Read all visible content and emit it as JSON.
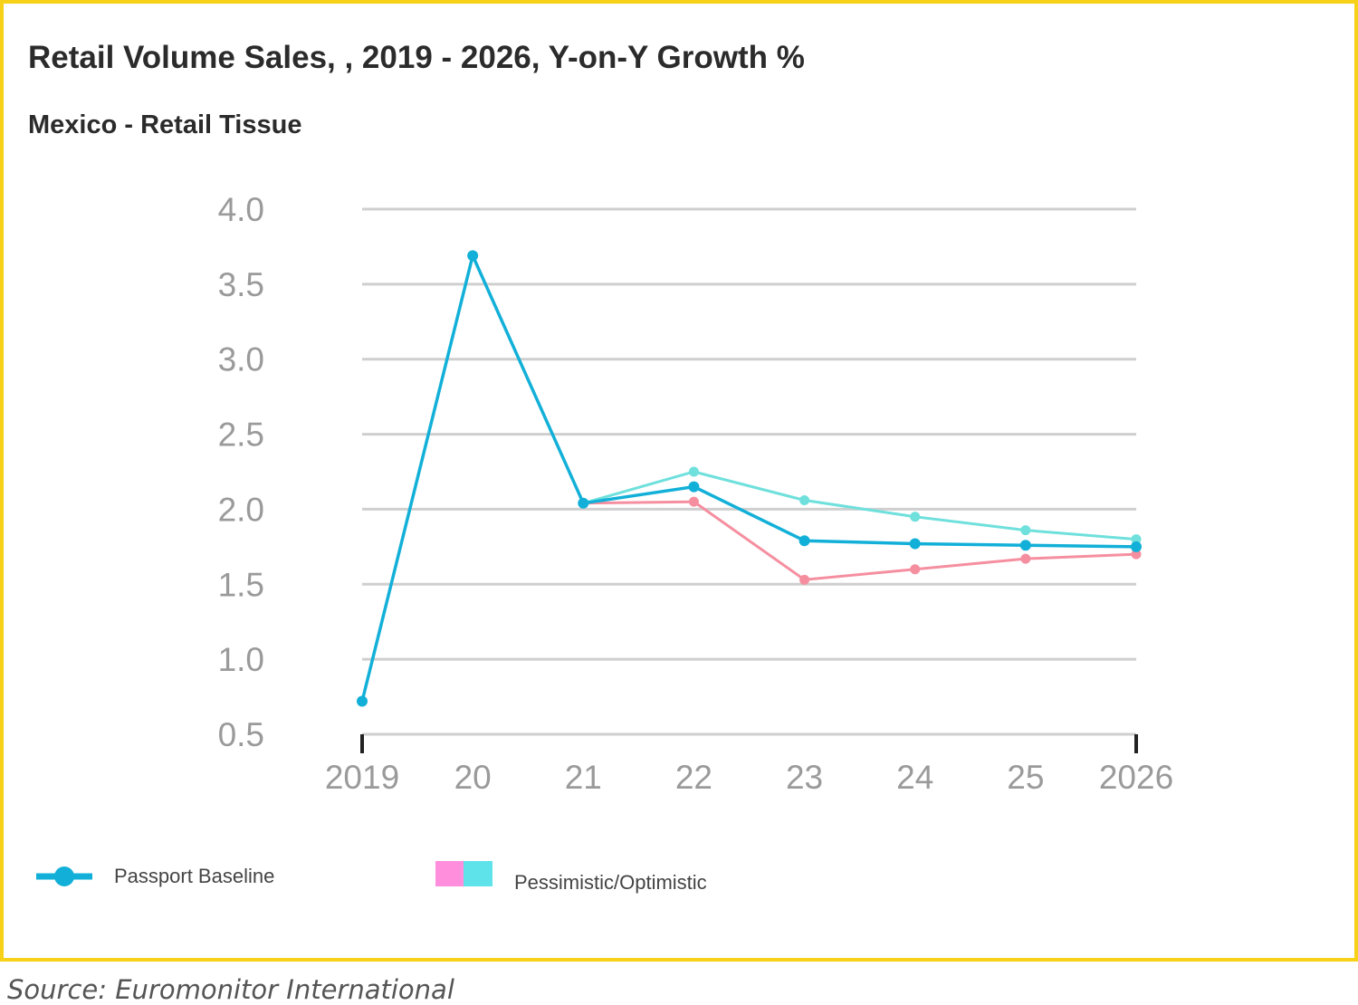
{
  "chart_title": "Retail Volume Sales, , 2019 - 2026, Y-on-Y Growth %",
  "chart_subtitle": "Mexico - Retail Tissue",
  "source": "Source: Euromonitor International",
  "colors": {
    "frame": "#f7d117",
    "baseline": "#12b0d8",
    "pessimistic": "#f58fa0",
    "optimistic": "#6fe0dc",
    "legend_pessimistic": "#ff8fdd",
    "legend_optimistic": "#5fe3eb",
    "grid": "#cfcfcf",
    "tick_text": "#9a9a9a"
  },
  "chart_data": {
    "type": "line",
    "title": "Retail Volume Sales, , 2019 - 2026, Y-on-Y Growth %",
    "subtitle": "Mexico - Retail Tissue",
    "x": [
      "2019",
      "20",
      "21",
      "22",
      "23",
      "24",
      "25",
      "2026"
    ],
    "y_ticks": [
      "0.5",
      "1.0",
      "1.5",
      "2.0",
      "2.5",
      "3.0",
      "3.5",
      "4.0"
    ],
    "ylim": [
      0.5,
      4.0
    ],
    "grid": true,
    "legend_position": "bottom",
    "legend": [
      "Passport Baseline",
      "Pessimistic/Optimistic"
    ],
    "series": [
      {
        "name": "Passport Baseline",
        "values": [
          0.72,
          3.69,
          2.04,
          2.15,
          1.79,
          1.77,
          1.76,
          1.75
        ]
      },
      {
        "name": "Pessimistic",
        "values": [
          null,
          null,
          2.04,
          2.05,
          1.53,
          1.6,
          1.67,
          1.7
        ]
      },
      {
        "name": "Optimistic",
        "values": [
          null,
          null,
          2.04,
          2.25,
          2.06,
          1.95,
          1.86,
          1.8
        ]
      }
    ]
  }
}
